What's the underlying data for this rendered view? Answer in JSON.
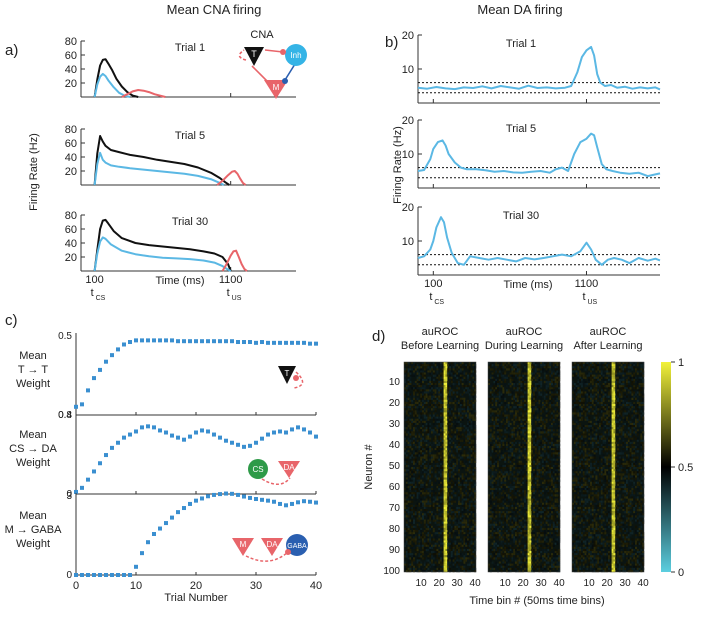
{
  "figure": {
    "title_cna": "Mean CNA firing",
    "title_da": "Mean DA firing",
    "panel_letters": [
      "a)",
      "b)",
      "c)",
      "d)"
    ]
  },
  "colors": {
    "black": "#111111",
    "blue": "#5bb8e4",
    "red": "#e8656a",
    "scatter": "#3a8fd0",
    "inh": "#35b4e6",
    "cs": "#2e9a48",
    "gaba": "#2a5fb0"
  },
  "chart_data": [
    {
      "id": "a",
      "type": "line",
      "title": "Mean CNA firing",
      "ylabel": "Firing Rate (Hz)",
      "xlabel": "Time (ms)",
      "ylim": [
        0,
        80
      ],
      "yticks": [
        20,
        40,
        60,
        80
      ],
      "xticks": [
        {
          "value": 100,
          "label": "100",
          "sub": "t",
          "subscript": "CS"
        },
        {
          "value": 1100,
          "label": "1100",
          "sub": "t",
          "subscript": "US"
        }
      ],
      "xlim": [
        0,
        1580
      ],
      "inset": {
        "title": "CNA",
        "labels": [
          "T",
          "Inh",
          "M"
        ]
      },
      "trials": [
        {
          "label": "Trial 1",
          "series": [
            {
              "name": "T",
              "color": "#111111",
              "x": [
                100,
                120,
                140,
                160,
                180,
                200,
                230,
                260,
                300,
                340,
                380,
                420
              ],
              "y": [
                0,
                25,
                45,
                53,
                54,
                48,
                38,
                26,
                15,
                7,
                2,
                0
              ]
            },
            {
              "name": "Inh",
              "color": "#5bb8e4",
              "x": [
                100,
                120,
                140,
                160,
                180,
                200,
                240,
                280,
                320,
                360
              ],
              "y": [
                0,
                18,
                29,
                33,
                30,
                24,
                14,
                6,
                2,
                0
              ]
            },
            {
              "name": "M",
              "color": "#e8656a",
              "x": [
                300,
                340,
                380,
                420,
                460,
                500,
                540,
                580,
                620
              ],
              "y": [
                0,
                4,
                8,
                10,
                9,
                7,
                4,
                2,
                0
              ]
            }
          ]
        },
        {
          "label": "Trial 5",
          "series": [
            {
              "name": "T",
              "color": "#111111",
              "x": [
                100,
                120,
                140,
                160,
                180,
                220,
                280,
                360,
                460,
                560,
                660,
                760,
                860,
                960,
                1020,
                1060,
                1090
              ],
              "y": [
                0,
                45,
                70,
                62,
                56,
                50,
                47,
                43,
                40,
                36,
                33,
                30,
                25,
                17,
                10,
                4,
                0
              ]
            },
            {
              "name": "Inh",
              "color": "#5bb8e4",
              "x": [
                100,
                120,
                140,
                160,
                180,
                220,
                280,
                360,
                460,
                560,
                660,
                760,
                860,
                960,
                1020,
                1050
              ],
              "y": [
                0,
                30,
                46,
                36,
                32,
                28,
                26,
                24,
                22,
                20,
                18,
                16,
                13,
                8,
                3,
                0
              ]
            },
            {
              "name": "M",
              "color": "#e8656a",
              "x": [
                1000,
                1040,
                1080,
                1110,
                1130,
                1150,
                1170,
                1190,
                1210
              ],
              "y": [
                0,
                6,
                14,
                19,
                20,
                16,
                9,
                3,
                0
              ]
            }
          ]
        },
        {
          "label": "Trial 30",
          "series": [
            {
              "name": "T",
              "color": "#111111",
              "x": [
                100,
                120,
                140,
                160,
                180,
                200,
                240,
                300,
                400,
                500,
                600,
                700,
                800,
                900,
                980,
                1040,
                1080,
                1100
              ],
              "y": [
                0,
                30,
                60,
                72,
                73,
                68,
                57,
                47,
                40,
                37,
                35,
                33,
                31,
                28,
                25,
                20,
                10,
                0
              ]
            },
            {
              "name": "Inh",
              "color": "#5bb8e4",
              "x": [
                100,
                120,
                140,
                160,
                180,
                220,
                300,
                400,
                500,
                600,
                700,
                800,
                900,
                980,
                1040,
                1080,
                1100
              ],
              "y": [
                0,
                25,
                42,
                48,
                46,
                38,
                29,
                24,
                21,
                19,
                18,
                17,
                15,
                12,
                7,
                2,
                0
              ]
            },
            {
              "name": "M",
              "color": "#e8656a",
              "x": [
                1040,
                1070,
                1100,
                1120,
                1140,
                1160,
                1180,
                1200,
                1220
              ],
              "y": [
                0,
                10,
                22,
                28,
                29,
                20,
                10,
                3,
                0
              ]
            }
          ]
        }
      ]
    },
    {
      "id": "b",
      "type": "line",
      "title": "Mean DA firing",
      "ylabel": "Firing Rate (Hz)",
      "xlabel": "Time (ms)",
      "ylim": [
        0,
        20
      ],
      "yticks": [
        10,
        20
      ],
      "xticks": [
        {
          "value": 100,
          "label": "100",
          "sub": "t",
          "subscript": "CS"
        },
        {
          "value": 1100,
          "label": "1100",
          "sub": "t",
          "subscript": "US"
        }
      ],
      "xlim": [
        0,
        1580
      ],
      "thresholds": [
        6,
        3
      ],
      "trials": [
        {
          "label": "Trial 1",
          "x": [
            0,
            60,
            120,
            180,
            240,
            300,
            360,
            420,
            480,
            540,
            600,
            660,
            720,
            780,
            840,
            900,
            960,
            1000,
            1040,
            1070,
            1100,
            1130,
            1150,
            1170,
            1190,
            1220,
            1260,
            1300,
            1350,
            1400,
            1450,
            1500,
            1550,
            1580
          ],
          "y": [
            4.5,
            4.2,
            4.7,
            4.3,
            4.1,
            4.6,
            4.4,
            4.9,
            4.3,
            5.0,
            4.6,
            4.2,
            5.1,
            4.4,
            4.6,
            4.3,
            4.5,
            5.0,
            9.0,
            13.5,
            15.5,
            16.5,
            14.0,
            8.5,
            6.0,
            5.0,
            5.3,
            4.5,
            4.8,
            4.2,
            4.6,
            4.3,
            4.6,
            4.0
          ]
        },
        {
          "label": "Trial 5",
          "x": [
            0,
            40,
            80,
            100,
            130,
            160,
            180,
            200,
            240,
            280,
            320,
            380,
            440,
            500,
            560,
            620,
            680,
            740,
            800,
            860,
            900,
            940,
            980,
            1020,
            1060,
            1100,
            1130,
            1150,
            1170,
            1200,
            1230,
            1270,
            1320,
            1380,
            1440,
            1500,
            1550,
            1580
          ],
          "y": [
            5.0,
            5.3,
            8.5,
            11.5,
            13.5,
            14.0,
            12.5,
            10.0,
            7.5,
            6.0,
            5.5,
            5.5,
            5.2,
            4.8,
            5.0,
            4.6,
            4.5,
            4.8,
            5.0,
            4.5,
            5.5,
            6.0,
            5.0,
            10.0,
            13.5,
            14.5,
            16.0,
            15.5,
            12.0,
            7.0,
            5.5,
            5.0,
            4.5,
            4.2,
            4.5,
            3.5,
            4.0,
            4.3
          ]
        },
        {
          "label": "Trial 30",
          "x": [
            0,
            40,
            80,
            100,
            120,
            150,
            170,
            190,
            220,
            260,
            300,
            340,
            400,
            460,
            520,
            580,
            640,
            700,
            760,
            820,
            880,
            940,
            1000,
            1060,
            1100,
            1130,
            1160,
            1200,
            1240,
            1280,
            1330,
            1380,
            1440,
            1500,
            1550,
            1580
          ],
          "y": [
            5.0,
            5.5,
            7.5,
            10.0,
            14.0,
            17.0,
            15.5,
            11.0,
            6.5,
            3.5,
            3.0,
            5.5,
            5.0,
            4.5,
            5.0,
            4.5,
            4.0,
            5.0,
            4.6,
            5.0,
            5.5,
            6.0,
            5.5,
            7.0,
            9.5,
            7.5,
            4.5,
            3.0,
            4.5,
            5.0,
            4.5,
            3.5,
            5.0,
            4.2,
            4.8,
            4.3
          ]
        }
      ]
    },
    {
      "id": "c",
      "type": "scatter",
      "xlabel": "Trial Number",
      "xlim": [
        0,
        40
      ],
      "xticks": [
        0,
        10,
        20,
        30,
        40
      ],
      "panels": [
        {
          "label_lines": [
            "Mean",
            "T → T",
            "Weight"
          ],
          "ylim": [
            0.4,
            0.5
          ],
          "yticks": [
            "0.4",
            "0.5"
          ],
          "inset": {
            "labels": [
              "T"
            ]
          },
          "x": [
            0,
            1,
            2,
            3,
            4,
            5,
            6,
            7,
            8,
            9,
            10,
            11,
            12,
            13,
            14,
            15,
            16,
            17,
            18,
            19,
            20,
            21,
            22,
            23,
            24,
            25,
            26,
            27,
            28,
            29,
            30,
            31,
            32,
            33,
            34,
            35,
            36,
            37,
            38,
            39,
            40
          ],
          "y": [
            0.41,
            0.413,
            0.43,
            0.445,
            0.455,
            0.465,
            0.473,
            0.48,
            0.486,
            0.489,
            0.491,
            0.491,
            0.491,
            0.491,
            0.491,
            0.491,
            0.491,
            0.49,
            0.49,
            0.49,
            0.49,
            0.49,
            0.49,
            0.49,
            0.49,
            0.49,
            0.49,
            0.489,
            0.489,
            0.489,
            0.488,
            0.489,
            0.488,
            0.488,
            0.488,
            0.488,
            0.488,
            0.488,
            0.488,
            0.487,
            0.487
          ]
        },
        {
          "label_lines": [
            "Mean",
            "CS → DA",
            "Weight"
          ],
          "ylim": [
            0,
            0.8
          ],
          "yticks": [
            "0",
            "0.8"
          ],
          "inset": {
            "labels": [
              "CS",
              "DA"
            ]
          },
          "x": [
            0,
            1,
            2,
            3,
            4,
            5,
            6,
            7,
            8,
            9,
            10,
            11,
            12,
            13,
            14,
            15,
            16,
            17,
            18,
            19,
            20,
            21,
            22,
            23,
            24,
            25,
            26,
            27,
            28,
            29,
            30,
            31,
            32,
            33,
            34,
            35,
            36,
            37,
            38,
            39,
            40
          ],
          "y": [
            0.02,
            0.06,
            0.14,
            0.22,
            0.3,
            0.38,
            0.45,
            0.5,
            0.55,
            0.58,
            0.61,
            0.65,
            0.66,
            0.65,
            0.62,
            0.6,
            0.57,
            0.55,
            0.53,
            0.56,
            0.6,
            0.62,
            0.61,
            0.58,
            0.55,
            0.52,
            0.5,
            0.48,
            0.46,
            0.47,
            0.5,
            0.54,
            0.58,
            0.6,
            0.61,
            0.6,
            0.63,
            0.65,
            0.63,
            0.6,
            0.56
          ]
        },
        {
          "label_lines": [
            "Mean",
            "M → GABA",
            "Weight"
          ],
          "ylim": [
            0,
            3
          ],
          "yticks": [
            "0",
            "3"
          ],
          "inset": {
            "labels": [
              "M",
              "DA",
              "GABA"
            ]
          },
          "x": [
            0,
            1,
            2,
            3,
            4,
            5,
            6,
            7,
            8,
            9,
            10,
            11,
            12,
            13,
            14,
            15,
            16,
            17,
            18,
            19,
            20,
            21,
            22,
            23,
            24,
            25,
            26,
            27,
            28,
            29,
            30,
            31,
            32,
            33,
            34,
            35,
            36,
            37,
            38,
            39,
            40
          ],
          "y": [
            0,
            0,
            0,
            0,
            0,
            0,
            0,
            0,
            0,
            0,
            0.3,
            0.8,
            1.2,
            1.5,
            1.7,
            1.9,
            2.1,
            2.3,
            2.45,
            2.6,
            2.72,
            2.8,
            2.88,
            2.93,
            2.96,
            2.98,
            2.97,
            2.93,
            2.87,
            2.82,
            2.78,
            2.75,
            2.72,
            2.68,
            2.6,
            2.55,
            2.6,
            2.66,
            2.7,
            2.68,
            2.65
          ]
        }
      ]
    },
    {
      "id": "d",
      "type": "heatmap",
      "panels": [
        {
          "title_lines": [
            "auROC",
            "Before Learning"
          ],
          "bright_bins": [
            23,
            24
          ]
        },
        {
          "title_lines": [
            "auROC",
            "During Learning"
          ],
          "bright_bins": [
            23,
            24
          ]
        },
        {
          "title_lines": [
            "auROC",
            "After Learning"
          ],
          "bright_bins": [
            23,
            24
          ]
        }
      ],
      "rows": 100,
      "cols": 40,
      "xticks": [
        10,
        20,
        30,
        40
      ],
      "yticks": [
        10,
        20,
        30,
        40,
        50,
        60,
        70,
        80,
        90,
        100
      ],
      "ylabel": "Neuron #",
      "xlabel": "Time bin # (50ms time bins)",
      "colorbar": {
        "range": [
          0,
          1
        ],
        "ticks": [
          "1",
          "0.5",
          "0"
        ],
        "colors": [
          "#5ccfe0",
          "#000000",
          "#f2f23a"
        ]
      }
    }
  ]
}
